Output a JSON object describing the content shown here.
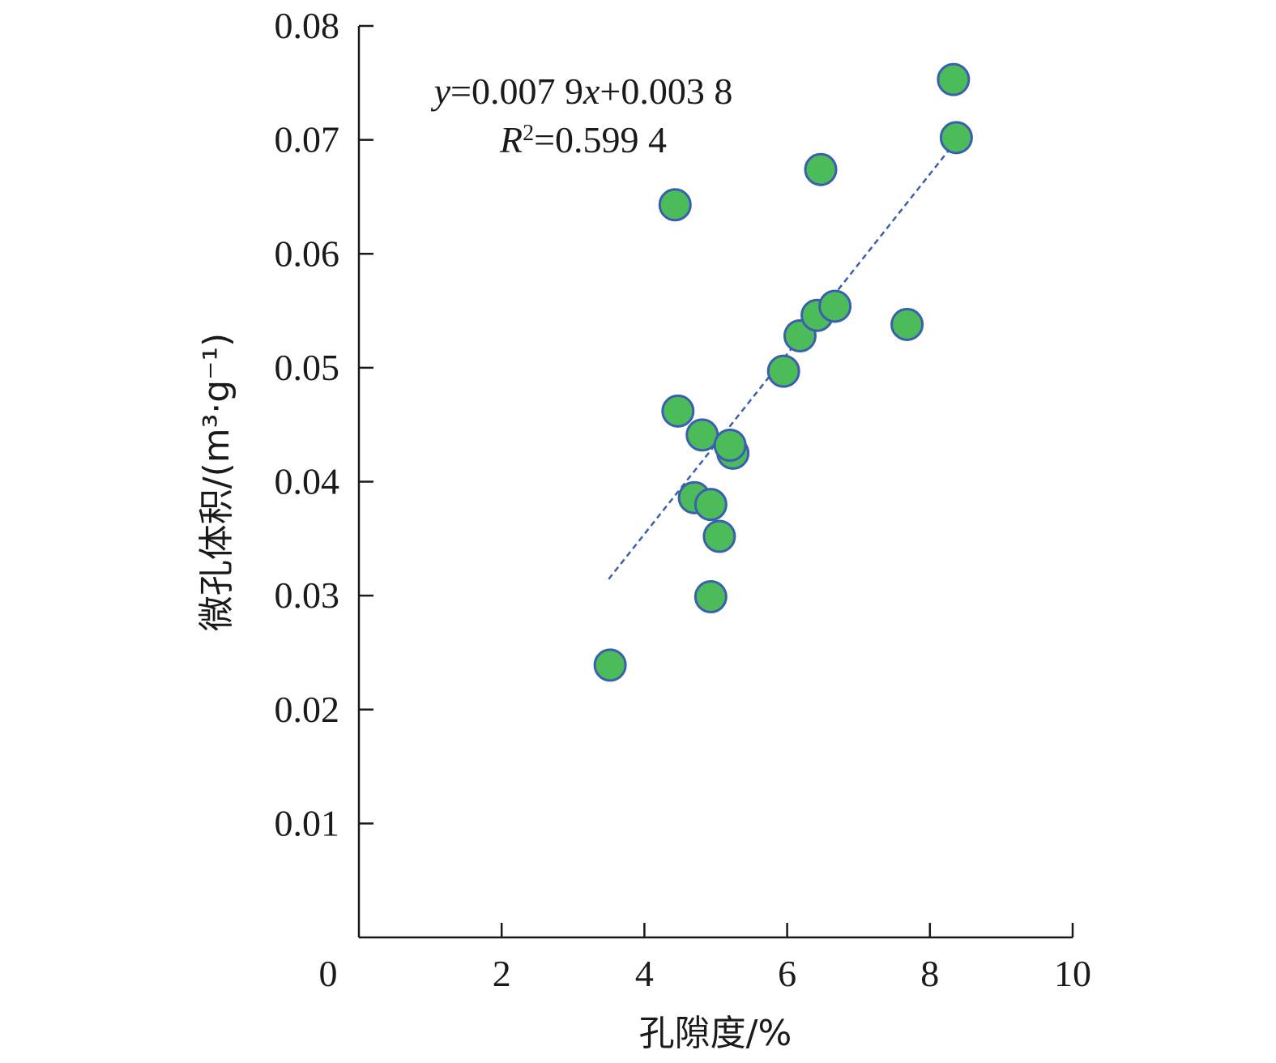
{
  "chart_data": {
    "type": "scatter",
    "xlabel": "孔隙度/%",
    "ylabel": "微孔体积/(m³·g⁻¹)",
    "xlim": [
      0,
      10
    ],
    "ylim": [
      0,
      0.08
    ],
    "x_ticks": [
      0,
      2,
      4,
      6,
      8,
      10
    ],
    "y_ticks": [
      0.01,
      0.02,
      0.03,
      0.04,
      0.05,
      0.06,
      0.07,
      0.08
    ],
    "x_tick_labels": [
      "0",
      "2",
      "4",
      "6",
      "8",
      "10"
    ],
    "y_tick_labels": [
      "0.01",
      "0.02",
      "0.03",
      "0.04",
      "0.05",
      "0.06",
      "0.07",
      "0.08"
    ],
    "grid": false,
    "marker_color": "#4cbb5a",
    "marker_edge_color": "#3a5fb0",
    "trendline_color": "#3a5fb0",
    "points": [
      {
        "x": 3.52,
        "y": 0.0239
      },
      {
        "x": 4.43,
        "y": 0.0643
      },
      {
        "x": 4.47,
        "y": 0.0462
      },
      {
        "x": 4.7,
        "y": 0.0386
      },
      {
        "x": 4.81,
        "y": 0.0441
      },
      {
        "x": 4.93,
        "y": 0.038
      },
      {
        "x": 4.93,
        "y": 0.0299
      },
      {
        "x": 5.05,
        "y": 0.0352
      },
      {
        "x": 5.24,
        "y": 0.0425
      },
      {
        "x": 5.2,
        "y": 0.0432
      },
      {
        "x": 5.95,
        "y": 0.0497
      },
      {
        "x": 6.18,
        "y": 0.0528
      },
      {
        "x": 6.42,
        "y": 0.0546
      },
      {
        "x": 6.47,
        "y": 0.0674
      },
      {
        "x": 6.67,
        "y": 0.0554
      },
      {
        "x": 7.68,
        "y": 0.0538
      },
      {
        "x": 8.33,
        "y": 0.0753
      },
      {
        "x": 8.37,
        "y": 0.0702
      }
    ],
    "trendline": {
      "slope": 0.0079,
      "intercept": 0.0038,
      "x_range": [
        3.5,
        8.35
      ],
      "style": "dashed"
    },
    "annotation": {
      "equation_parts": [
        "y",
        "=0.007 9",
        "x",
        "+0.003 8"
      ],
      "r2_parts": [
        "R",
        "2",
        "=0.599 4"
      ]
    }
  }
}
